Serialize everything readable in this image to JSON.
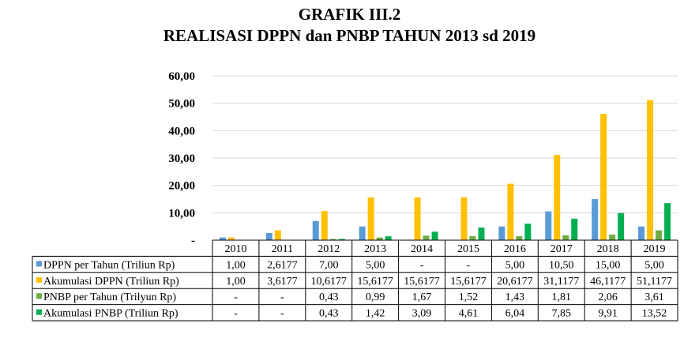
{
  "chart_data": {
    "type": "bar",
    "title_line1": "GRAFIK III.2",
    "title_line2": "REALISASI DPPN dan PNBP TAHUN 2013 sd 2019",
    "categories": [
      "2010",
      "2011",
      "2012",
      "2013",
      "2014",
      "2015",
      "2016",
      "2017",
      "2018",
      "2019"
    ],
    "ylim": [
      0,
      60
    ],
    "yticks": [
      "-",
      "10,00",
      "20,00",
      "30,00",
      "40,00",
      "50,00",
      "60,00"
    ],
    "grid": true,
    "legend": "data-table",
    "series": [
      {
        "name": "DPPN per Tahun (Triliun Rp)",
        "color": "#5b9bd5",
        "values": [
          1.0,
          2.6177,
          7.0,
          5.0,
          0,
          0,
          5.0,
          10.5,
          15.0,
          5.0
        ],
        "labels": [
          "1,00",
          "2,6177",
          "7,00",
          "5,00",
          "-",
          "-",
          "5,00",
          "10,50",
          "15,00",
          "5,00"
        ]
      },
      {
        "name": "Akumulasi DPPN (Triliun Rp)",
        "color": "#ffc000",
        "values": [
          1.0,
          3.6177,
          10.6177,
          15.6177,
          15.6177,
          15.6177,
          20.6177,
          31.1177,
          46.1177,
          51.1177
        ],
        "labels": [
          "1,00",
          "3,6177",
          "10,6177",
          "15,6177",
          "15,6177",
          "15,6177",
          "20,6177",
          "31,1177",
          "46,1177",
          "51,1177"
        ]
      },
      {
        "name": "PNBP per Tahun (Trilyun Rp)",
        "color": "#70ad47",
        "values": [
          0,
          0,
          0.43,
          0.99,
          1.67,
          1.52,
          1.43,
          1.81,
          2.06,
          3.61
        ],
        "labels": [
          "-",
          "-",
          "0,43",
          "0,99",
          "1,67",
          "1,52",
          "1,43",
          "1,81",
          "2,06",
          "3,61"
        ]
      },
      {
        "name": "Akumulasi PNBP (Triliun Rp)",
        "color": "#00b050",
        "values": [
          0,
          0,
          0.43,
          1.42,
          3.09,
          4.61,
          6.04,
          7.85,
          9.91,
          13.52
        ],
        "labels": [
          "-",
          "-",
          "0,43",
          "1,42",
          "3,09",
          "4,61",
          "6,04",
          "7,85",
          "9,91",
          "13,52"
        ]
      }
    ]
  }
}
